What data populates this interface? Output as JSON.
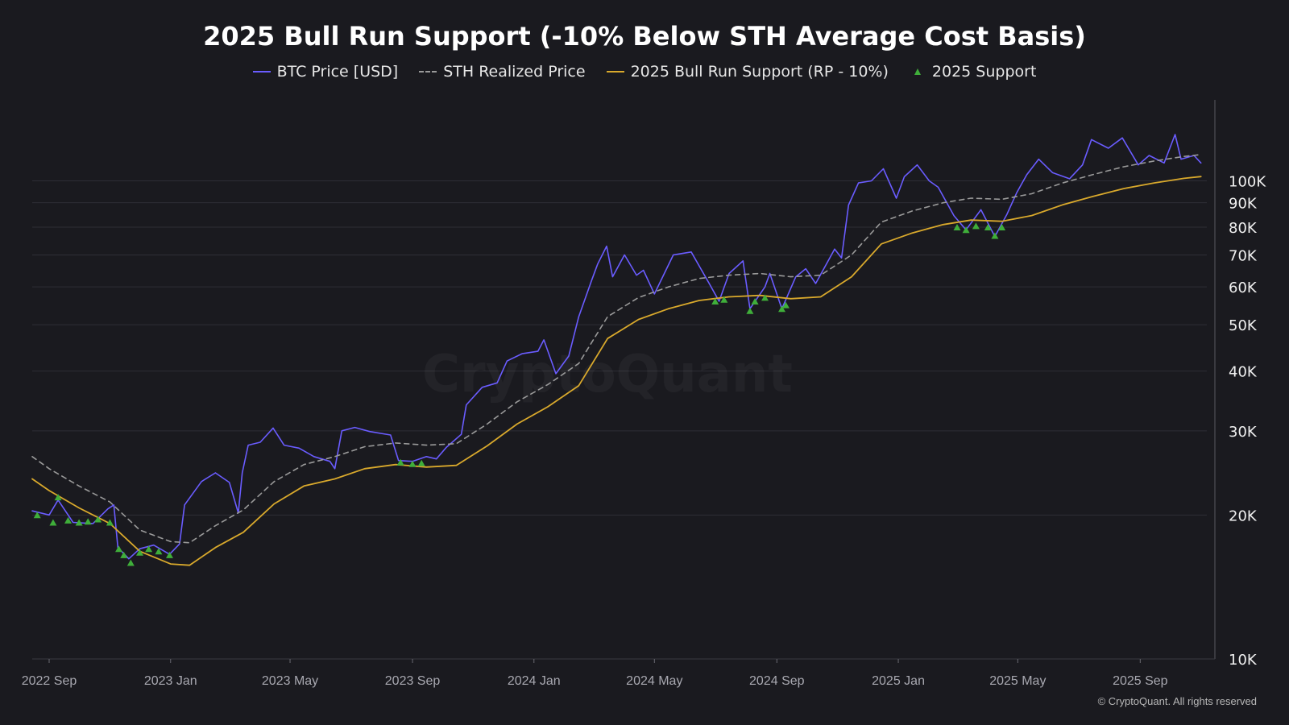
{
  "title": "2025 Bull Run Support (-10% Below STH Average Cost Basis)",
  "legend": [
    {
      "label": "BTC Price [USD]",
      "color": "#6a5cff",
      "style": "line"
    },
    {
      "label": "STH Realized Price",
      "color": "#9a9a9a",
      "style": "dashed"
    },
    {
      "label": "2025 Bull Run Support (RP - 10%)",
      "color": "#d9a92c",
      "style": "line"
    },
    {
      "label": "2025 Support",
      "color": "#3fae3a",
      "style": "triangle"
    }
  ],
  "watermark": "CryptoQuant",
  "copyright": "© CryptoQuant. All rights reserved",
  "colors": {
    "background": "#1a1a1f",
    "grid": "#2e2e36",
    "price": "#6a5cff",
    "sth": "#9a9a9a",
    "support": "#d9a92c",
    "marker": "#3fae3a"
  },
  "chart_data": {
    "type": "line",
    "scale": "log",
    "xlim": [
      "2022-08-15",
      "2025-11-15"
    ],
    "ylim": [
      10000,
      150000
    ],
    "x_ticks": [
      {
        "date": "2022-09-01",
        "label": "2022 Sep"
      },
      {
        "date": "2023-01-01",
        "label": "2023 Jan"
      },
      {
        "date": "2023-05-01",
        "label": "2023 May"
      },
      {
        "date": "2023-09-01",
        "label": "2023 Sep"
      },
      {
        "date": "2024-01-01",
        "label": "2024 Jan"
      },
      {
        "date": "2024-05-01",
        "label": "2024 May"
      },
      {
        "date": "2024-09-01",
        "label": "2024 Sep"
      },
      {
        "date": "2025-01-01",
        "label": "2025 Jan"
      },
      {
        "date": "2025-05-01",
        "label": "2025 May"
      },
      {
        "date": "2025-09-01",
        "label": "2025 Sep"
      }
    ],
    "y_ticks": [
      {
        "value": 10000,
        "label": "10K"
      },
      {
        "value": 20000,
        "label": "20K"
      },
      {
        "value": 30000,
        "label": "30K"
      },
      {
        "value": 40000,
        "label": "40K"
      },
      {
        "value": 50000,
        "label": "50K"
      },
      {
        "value": 60000,
        "label": "60K"
      },
      {
        "value": 70000,
        "label": "70K"
      },
      {
        "value": 80000,
        "label": "80K"
      },
      {
        "value": 90000,
        "label": "90K"
      },
      {
        "value": 100000,
        "label": "100K"
      }
    ],
    "series": [
      {
        "name": "BTC Price [USD]",
        "points": [
          [
            "2022-08-15",
            20400
          ],
          [
            "2022-09-01",
            20000
          ],
          [
            "2022-09-10",
            21500
          ],
          [
            "2022-09-25",
            19300
          ],
          [
            "2022-10-15",
            19200
          ],
          [
            "2022-10-30",
            20600
          ],
          [
            "2022-11-05",
            21000
          ],
          [
            "2022-11-09",
            17100
          ],
          [
            "2022-11-20",
            16200
          ],
          [
            "2022-12-01",
            17000
          ],
          [
            "2022-12-15",
            17300
          ],
          [
            "2022-12-31",
            16550
          ],
          [
            "2023-01-10",
            17400
          ],
          [
            "2023-01-15",
            21000
          ],
          [
            "2023-02-01",
            23500
          ],
          [
            "2023-02-15",
            24500
          ],
          [
            "2023-03-01",
            23400
          ],
          [
            "2023-03-10",
            20200
          ],
          [
            "2023-03-14",
            24500
          ],
          [
            "2023-03-20",
            28000
          ],
          [
            "2023-04-01",
            28400
          ],
          [
            "2023-04-14",
            30400
          ],
          [
            "2023-04-25",
            28000
          ],
          [
            "2023-05-10",
            27600
          ],
          [
            "2023-05-25",
            26500
          ],
          [
            "2023-06-10",
            25900
          ],
          [
            "2023-06-15",
            25000
          ],
          [
            "2023-06-22",
            30000
          ],
          [
            "2023-07-05",
            30500
          ],
          [
            "2023-07-20",
            29900
          ],
          [
            "2023-08-10",
            29400
          ],
          [
            "2023-08-18",
            26000
          ],
          [
            "2023-09-01",
            25900
          ],
          [
            "2023-09-15",
            26500
          ],
          [
            "2023-09-25",
            26200
          ],
          [
            "2023-10-05",
            27700
          ],
          [
            "2023-10-20",
            29500
          ],
          [
            "2023-10-25",
            34000
          ],
          [
            "2023-11-10",
            37000
          ],
          [
            "2023-11-25",
            37800
          ],
          [
            "2023-12-05",
            42000
          ],
          [
            "2023-12-20",
            43500
          ],
          [
            "2024-01-05",
            44000
          ],
          [
            "2024-01-11",
            46500
          ],
          [
            "2024-01-23",
            39500
          ],
          [
            "2024-02-05",
            43000
          ],
          [
            "2024-02-15",
            52000
          ],
          [
            "2024-02-28",
            62000
          ],
          [
            "2024-03-05",
            67000
          ],
          [
            "2024-03-14",
            73000
          ],
          [
            "2024-03-20",
            63000
          ],
          [
            "2024-04-01",
            70000
          ],
          [
            "2024-04-13",
            63500
          ],
          [
            "2024-04-20",
            65000
          ],
          [
            "2024-05-01",
            58000
          ],
          [
            "2024-05-20",
            70000
          ],
          [
            "2024-06-07",
            71000
          ],
          [
            "2024-06-25",
            61000
          ],
          [
            "2024-07-05",
            56000
          ],
          [
            "2024-07-15",
            64000
          ],
          [
            "2024-07-29",
            68000
          ],
          [
            "2024-08-05",
            54000
          ],
          [
            "2024-08-20",
            60000
          ],
          [
            "2024-08-25",
            64000
          ],
          [
            "2024-09-06",
            54000
          ],
          [
            "2024-09-20",
            63000
          ],
          [
            "2024-09-30",
            65500
          ],
          [
            "2024-10-10",
            61000
          ],
          [
            "2024-10-29",
            72000
          ],
          [
            "2024-11-05",
            69000
          ],
          [
            "2024-11-12",
            89000
          ],
          [
            "2024-11-22",
            99000
          ],
          [
            "2024-12-05",
            100000
          ],
          [
            "2024-12-17",
            106000
          ],
          [
            "2024-12-30",
            92000
          ],
          [
            "2025-01-07",
            102000
          ],
          [
            "2025-01-20",
            108000
          ],
          [
            "2025-02-01",
            100000
          ],
          [
            "2025-02-10",
            97000
          ],
          [
            "2025-02-26",
            84500
          ],
          [
            "2025-03-10",
            79000
          ],
          [
            "2025-03-25",
            87000
          ],
          [
            "2025-04-08",
            76500
          ],
          [
            "2025-04-20",
            85000
          ],
          [
            "2025-04-30",
            94500
          ],
          [
            "2025-05-10",
            103000
          ],
          [
            "2025-05-22",
            111000
          ],
          [
            "2025-06-05",
            104000
          ],
          [
            "2025-06-22",
            101000
          ],
          [
            "2025-07-05",
            108000
          ],
          [
            "2025-07-14",
            122000
          ],
          [
            "2025-07-31",
            117000
          ],
          [
            "2025-08-14",
            123000
          ],
          [
            "2025-08-30",
            108000
          ],
          [
            "2025-09-10",
            113000
          ],
          [
            "2025-09-25",
            109000
          ],
          [
            "2025-10-06",
            125000
          ],
          [
            "2025-10-12",
            111000
          ],
          [
            "2025-10-25",
            113000
          ],
          [
            "2025-11-01",
            109000
          ]
        ]
      },
      {
        "name": "STH Realized Price",
        "points": [
          [
            "2022-08-15",
            26500
          ],
          [
            "2022-09-01",
            25000
          ],
          [
            "2022-10-01",
            23000
          ],
          [
            "2022-11-01",
            21300
          ],
          [
            "2022-12-01",
            18600
          ],
          [
            "2023-01-01",
            17600
          ],
          [
            "2023-01-20",
            17500
          ],
          [
            "2023-02-15",
            19000
          ],
          [
            "2023-03-15",
            20500
          ],
          [
            "2023-04-15",
            23500
          ],
          [
            "2023-05-15",
            25500
          ],
          [
            "2023-06-15",
            26500
          ],
          [
            "2023-07-15",
            27800
          ],
          [
            "2023-08-15",
            28300
          ],
          [
            "2023-09-15",
            28000
          ],
          [
            "2023-10-15",
            28200
          ],
          [
            "2023-11-15",
            31000
          ],
          [
            "2023-12-15",
            34500
          ],
          [
            "2024-01-15",
            37500
          ],
          [
            "2024-02-15",
            41500
          ],
          [
            "2024-03-15",
            52000
          ],
          [
            "2024-04-15",
            57000
          ],
          [
            "2024-05-15",
            60000
          ],
          [
            "2024-06-15",
            62500
          ],
          [
            "2024-07-15",
            63500
          ],
          [
            "2024-08-15",
            64000
          ],
          [
            "2024-09-15",
            63000
          ],
          [
            "2024-10-15",
            63500
          ],
          [
            "2024-11-15",
            70000
          ],
          [
            "2024-12-15",
            82000
          ],
          [
            "2025-01-15",
            86500
          ],
          [
            "2025-02-15",
            90000
          ],
          [
            "2025-03-15",
            92000
          ],
          [
            "2025-04-15",
            91500
          ],
          [
            "2025-05-15",
            94000
          ],
          [
            "2025-06-15",
            99000
          ],
          [
            "2025-07-15",
            103000
          ],
          [
            "2025-08-15",
            107000
          ],
          [
            "2025-09-15",
            110000
          ],
          [
            "2025-10-15",
            112500
          ],
          [
            "2025-11-01",
            113500
          ]
        ]
      },
      {
        "name": "2025 Bull Run Support (RP - 10%)",
        "points": [
          [
            "2022-08-15",
            23800
          ],
          [
            "2022-09-01",
            22500
          ],
          [
            "2022-10-01",
            20700
          ],
          [
            "2022-11-01",
            19200
          ],
          [
            "2022-12-01",
            16800
          ],
          [
            "2023-01-01",
            15800
          ],
          [
            "2023-01-20",
            15700
          ],
          [
            "2023-02-15",
            17100
          ],
          [
            "2023-03-15",
            18400
          ],
          [
            "2023-04-15",
            21100
          ],
          [
            "2023-05-15",
            23000
          ],
          [
            "2023-06-15",
            23800
          ],
          [
            "2023-07-15",
            25000
          ],
          [
            "2023-08-15",
            25500
          ],
          [
            "2023-09-15",
            25200
          ],
          [
            "2023-10-15",
            25400
          ],
          [
            "2023-11-15",
            27900
          ],
          [
            "2023-12-15",
            31000
          ],
          [
            "2024-01-15",
            33700
          ],
          [
            "2024-02-15",
            37300
          ],
          [
            "2024-03-15",
            46800
          ],
          [
            "2024-04-15",
            51300
          ],
          [
            "2024-05-15",
            54000
          ],
          [
            "2024-06-15",
            56200
          ],
          [
            "2024-07-15",
            57200
          ],
          [
            "2024-08-15",
            57600
          ],
          [
            "2024-09-15",
            56700
          ],
          [
            "2024-10-15",
            57200
          ],
          [
            "2024-11-15",
            63000
          ],
          [
            "2024-12-15",
            73800
          ],
          [
            "2025-01-15",
            77800
          ],
          [
            "2025-02-15",
            81000
          ],
          [
            "2025-03-15",
            82800
          ],
          [
            "2025-04-15",
            82300
          ],
          [
            "2025-05-15",
            84600
          ],
          [
            "2025-06-15",
            89100
          ],
          [
            "2025-07-15",
            92700
          ],
          [
            "2025-08-15",
            96300
          ],
          [
            "2025-09-15",
            99000
          ],
          [
            "2025-10-15",
            101200
          ],
          [
            "2025-11-01",
            102100
          ]
        ]
      },
      {
        "name": "2025 Support",
        "type": "scatter",
        "points": [
          [
            "2022-08-20",
            20000
          ],
          [
            "2022-09-05",
            19300
          ],
          [
            "2022-09-10",
            21800
          ],
          [
            "2022-09-20",
            19500
          ],
          [
            "2022-10-01",
            19300
          ],
          [
            "2022-10-10",
            19400
          ],
          [
            "2022-10-20",
            19600
          ],
          [
            "2022-11-01",
            19300
          ],
          [
            "2022-11-10",
            17000
          ],
          [
            "2022-11-15",
            16500
          ],
          [
            "2022-11-22",
            15900
          ],
          [
            "2022-12-01",
            16700
          ],
          [
            "2022-12-10",
            17000
          ],
          [
            "2022-12-20",
            16800
          ],
          [
            "2022-12-31",
            16500
          ],
          [
            "2023-08-20",
            25800
          ],
          [
            "2023-09-01",
            25600
          ],
          [
            "2023-09-10",
            25700
          ],
          [
            "2024-07-01",
            56000
          ],
          [
            "2024-07-10",
            56500
          ],
          [
            "2024-08-05",
            53500
          ],
          [
            "2024-08-10",
            56000
          ],
          [
            "2024-08-20",
            57000
          ],
          [
            "2024-09-06",
            54000
          ],
          [
            "2024-09-10",
            55000
          ],
          [
            "2025-03-01",
            80000
          ],
          [
            "2025-03-10",
            79000
          ],
          [
            "2025-03-20",
            80500
          ],
          [
            "2025-04-01",
            80000
          ],
          [
            "2025-04-08",
            76800
          ],
          [
            "2025-04-15",
            80000
          ]
        ]
      }
    ]
  }
}
